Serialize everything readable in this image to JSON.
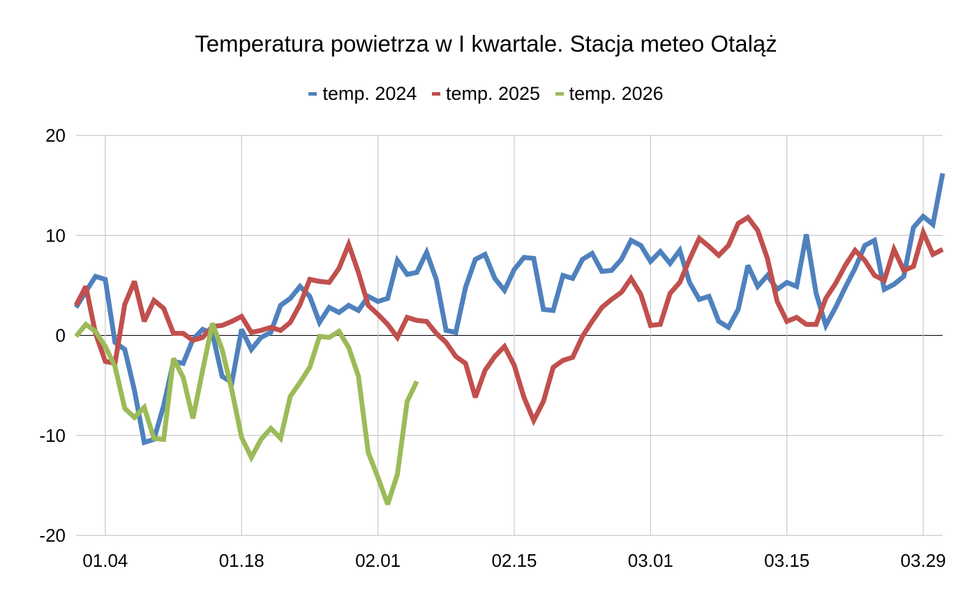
{
  "chart_data": {
    "type": "line",
    "title": "Temperatura powietrza w I kwartale. Stacja meteo Otaląż",
    "xlabel": "",
    "ylabel": "",
    "ylim": [
      -20,
      20
    ],
    "yticks": [
      20,
      10,
      0,
      -10,
      -20
    ],
    "ytick_labels": [
      "20",
      "10",
      "0",
      "-10",
      "-20"
    ],
    "xtick_labels": [
      {
        "day_index": 3,
        "label": "01.04"
      },
      {
        "day_index": 17,
        "label": "01.18"
      },
      {
        "day_index": 31,
        "label": "02.01"
      },
      {
        "day_index": 45,
        "label": "02.15"
      },
      {
        "day_index": 59,
        "label": "03.01"
      },
      {
        "day_index": 73,
        "label": "03.15"
      },
      {
        "day_index": 87,
        "label": "03.29"
      }
    ],
    "x_days": 90,
    "x_start": "01.01",
    "x_end": "03.31",
    "grid": true,
    "legend_position": "top",
    "series": [
      {
        "name": "temp. 2024",
        "color": "#4f81bd",
        "values": [
          2.8,
          4.4,
          5.9,
          5.6,
          -0.7,
          -1.4,
          -5.5,
          -10.7,
          -10.4,
          -7.0,
          -2.6,
          -2.8,
          -0.4,
          0.6,
          0.2,
          -4.1,
          -4.7,
          0.6,
          -1.4,
          -0.2,
          0.3,
          3.0,
          3.7,
          4.9,
          3.9,
          1.3,
          2.8,
          2.3,
          3.0,
          2.5,
          3.9,
          3.4,
          3.7,
          7.5,
          6.1,
          6.3,
          8.3,
          5.6,
          0.5,
          0.3,
          4.8,
          7.6,
          8.1,
          5.7,
          4.5,
          6.6,
          7.8,
          7.7,
          2.6,
          2.5,
          6.0,
          5.7,
          7.6,
          8.2,
          6.4,
          6.5,
          7.6,
          9.5,
          9.0,
          7.4,
          8.4,
          7.2,
          8.5,
          5.3,
          3.6,
          3.9,
          1.4,
          0.8,
          2.6,
          7.0,
          4.9,
          6.0,
          4.6,
          5.3,
          4.9,
          10.1,
          4.2,
          1.0,
          2.8,
          4.8,
          6.7,
          9.0,
          9.5,
          4.6,
          5.1,
          5.9,
          10.8,
          11.9,
          11.1,
          16.2
        ]
      },
      {
        "name": "temp. 2025",
        "color": "#c0504d",
        "values": [
          3.0,
          4.9,
          0.2,
          -2.6,
          -2.8,
          3.1,
          5.4,
          1.4,
          3.5,
          2.7,
          0.2,
          0.2,
          -0.5,
          -0.2,
          0.9,
          1.0,
          1.4,
          1.9,
          0.3,
          0.5,
          0.8,
          0.5,
          1.3,
          3.1,
          5.6,
          5.4,
          5.3,
          6.7,
          9.1,
          6.3,
          3.0,
          2.1,
          1.1,
          -0.2,
          1.8,
          1.5,
          1.4,
          0.2,
          -0.7,
          -2.1,
          -2.8,
          -6.2,
          -3.5,
          -2.1,
          -1.1,
          -3.0,
          -6.2,
          -8.5,
          -6.6,
          -3.2,
          -2.5,
          -2.2,
          -0.1,
          1.4,
          2.8,
          3.6,
          4.3,
          5.7,
          4.1,
          1.0,
          1.1,
          4.2,
          5.3,
          7.6,
          9.7,
          8.9,
          8.0,
          9.0,
          11.2,
          11.8,
          10.5,
          7.7,
          3.4,
          1.4,
          1.8,
          1.1,
          1.1,
          3.7,
          5.2,
          7.0,
          8.5,
          7.5,
          6.0,
          5.5,
          8.6,
          6.5,
          6.9,
          10.3,
          8.1,
          8.6
        ]
      },
      {
        "name": "temp. 2026",
        "color": "#9bbb59",
        "values": [
          -0.1,
          1.1,
          0.4,
          -1.1,
          -3.1,
          -7.3,
          -8.2,
          -7.2,
          -10.3,
          -10.4,
          -2.3,
          -4.2,
          -8.3,
          -3.5,
          1.2,
          -1.4,
          -5.5,
          -10.2,
          -12.2,
          -10.4,
          -9.3,
          -10.3,
          -6.1,
          -4.7,
          -3.2,
          -0.1,
          -0.2,
          0.4,
          -1.2,
          -4.1,
          -11.7,
          -14.2,
          -16.9,
          -13.9,
          -6.6,
          -4.6
        ]
      }
    ]
  }
}
